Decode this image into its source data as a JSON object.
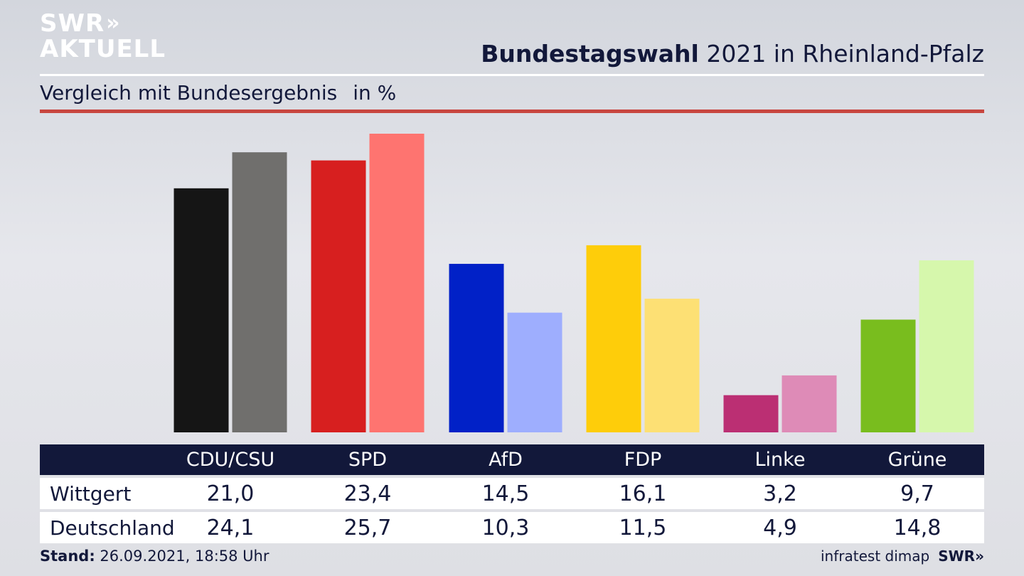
{
  "logo": {
    "top": "SWR",
    "chevrons": "»",
    "bottom": "AKTUELL"
  },
  "header": {
    "title_bold": "Bundestagswahl",
    "title_rest": " 2021 in Rheinland-Pfalz"
  },
  "subtitle": {
    "text": "Vergleich mit Bundesergebnis",
    "unit": "in %"
  },
  "chart_data": {
    "type": "bar",
    "categories": [
      "CDU/CSU",
      "SPD",
      "AfD",
      "FDP",
      "Linke",
      "Grüne"
    ],
    "series": [
      {
        "name": "Wittgert",
        "values": [
          21.0,
          23.4,
          14.5,
          16.1,
          3.2,
          9.7
        ],
        "colors": [
          "#151515",
          "#d71f1f",
          "#0121c7",
          "#fecd0a",
          "#bb2f73",
          "#79bd1e"
        ]
      },
      {
        "name": "Deutschland",
        "values": [
          24.1,
          25.7,
          10.3,
          11.5,
          4.9,
          14.8
        ],
        "colors": [
          "#706f6d",
          "#fe7470",
          "#9eaefe",
          "#fde074",
          "#de8bb7",
          "#d6f7ac"
        ]
      }
    ],
    "ylim": [
      0,
      25.7
    ]
  },
  "table": {
    "headers": [
      "CDU/CSU",
      "SPD",
      "AfD",
      "FDP",
      "Linke",
      "Grüne"
    ],
    "rows": [
      {
        "label": "Wittgert",
        "values": [
          "21,0",
          "23,4",
          "14,5",
          "16,1",
          "3,2",
          "9,7"
        ]
      },
      {
        "label": "Deutschland",
        "values": [
          "24,1",
          "25,7",
          "10,3",
          "11,5",
          "4,9",
          "14,8"
        ]
      }
    ]
  },
  "footer": {
    "stand_label": "Stand:",
    "stand_value": " 26.09.2021, 18:58 Uhr",
    "source": "infratest dimap",
    "brand": "SWR»"
  }
}
